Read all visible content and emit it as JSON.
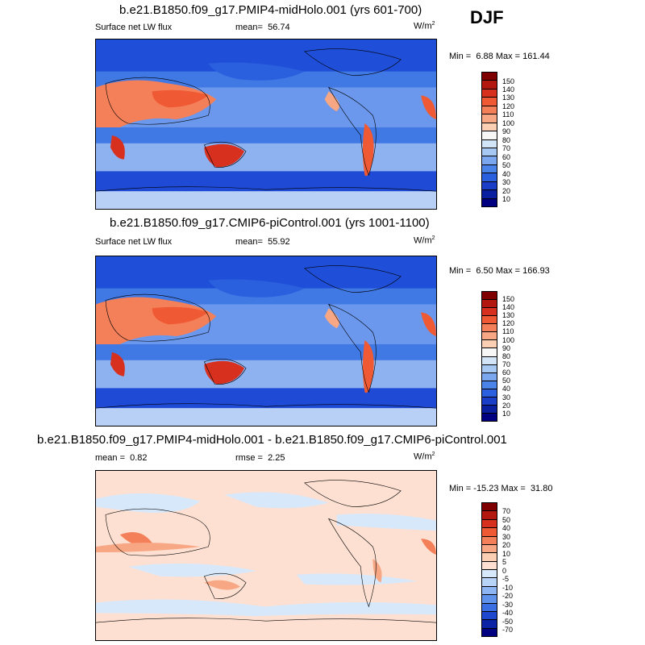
{
  "season": "DJF",
  "panels": [
    {
      "title": "b.e21.B1850.f09_g17.PMIP4-midHolo.001 (yrs 601-700)",
      "variable": "Surface net LW flux",
      "mean_label": "mean=",
      "mean_value": "56.74",
      "units": "W/m",
      "units_sup": "2",
      "min_label": "Min =",
      "min_value": "6.88",
      "max_label": "Max =",
      "max_value": "161.44",
      "colorbar_labels": [
        "150",
        "140",
        "130",
        "120",
        "110",
        "100",
        "90",
        "80",
        "70",
        "60",
        "50",
        "40",
        "30",
        "20",
        "10"
      ]
    },
    {
      "title": "b.e21.B1850.f09_g17.CMIP6-piControl.001 (yrs 1001-1100)",
      "variable": "Surface net LW flux",
      "mean_label": "mean=",
      "mean_value": "55.92",
      "units": "W/m",
      "units_sup": "2",
      "min_label": "Min =",
      "min_value": "6.50",
      "max_label": "Max =",
      "max_value": "166.93",
      "colorbar_labels": [
        "150",
        "140",
        "130",
        "120",
        "110",
        "100",
        "90",
        "80",
        "70",
        "60",
        "50",
        "40",
        "30",
        "20",
        "10"
      ]
    },
    {
      "title": "b.e21.B1850.f09_g17.PMIP4-midHolo.001 - b.e21.B1850.f09_g17.CMIP6-piControl.001",
      "mean_label": "mean =",
      "mean_value": "0.82",
      "rmse_label": "rmse =",
      "rmse_value": "2.25",
      "units": "W/m",
      "units_sup": "2",
      "min_label": "Min =",
      "min_value": "-15.23",
      "max_label": "Max =",
      "max_value": "31.80",
      "colorbar_labels": [
        "70",
        "50",
        "40",
        "30",
        "20",
        "10",
        "5",
        "0",
        "-5",
        "-10",
        "-20",
        "-30",
        "-40",
        "-50",
        "-70"
      ]
    }
  ],
  "colors": {
    "abs_scale": [
      "#7f0000",
      "#b2180f",
      "#d7301f",
      "#ef5a34",
      "#f4805a",
      "#f8a784",
      "#fbcfb4",
      "#f7f7f7",
      "#d2e4f7",
      "#a8c8f4",
      "#7aa7ee",
      "#4a84e8",
      "#2a5fde",
      "#1a3ec8",
      "#0a1ea0",
      "#000080"
    ],
    "diff_scale": [
      "#7f0000",
      "#b2180f",
      "#d7301f",
      "#ef5a34",
      "#f4805a",
      "#f8a784",
      "#fbcfb4",
      "#fde0d2",
      "#d8e8fb",
      "#b7d3f6",
      "#8cb5f1",
      "#5f92ea",
      "#3a6ee3",
      "#1e49cf",
      "#0c23a6",
      "#000080"
    ],
    "map_ocean_abs": "#3e6ee0",
    "map_diff_bg": "#fde0d2"
  }
}
